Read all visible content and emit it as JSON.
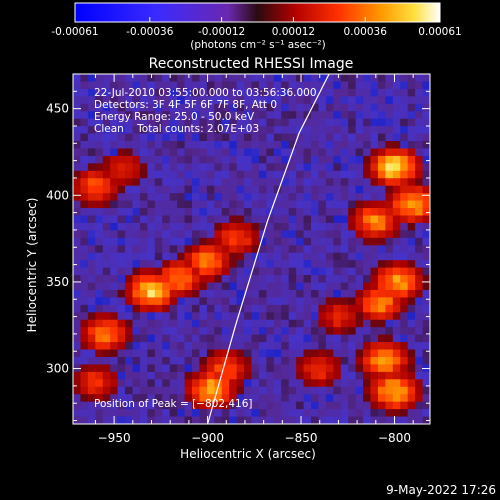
{
  "colorbar": {
    "tick_labels": [
      "-0.00061",
      "-0.00036",
      "-0.00012",
      "0.00012",
      "0.00036",
      "0.00061"
    ],
    "tick_values": [
      -0.00061,
      -0.00036,
      -0.00012,
      0.00012,
      0.00036,
      0.00061
    ],
    "range": [
      -0.00061,
      0.00061
    ],
    "units_label": "(photons cm⁻² s⁻¹ asec⁻²)"
  },
  "chart_data": {
    "type": "heatmap",
    "title": "Reconstructed RHESSI Image",
    "xlabel": "Heliocentric X (arcsec)",
    "ylabel": "Heliocentric Y (arcsec)",
    "xlim": [
      -972,
      -781
    ],
    "ylim": [
      268,
      470
    ],
    "x_ticks": [
      -950,
      -900,
      -850,
      -800
    ],
    "x_tick_labels": [
      "−950",
      "−900",
      "−850",
      "−800"
    ],
    "y_ticks": [
      300,
      350,
      400,
      450
    ],
    "y_tick_labels": [
      "300",
      "350",
      "400",
      "450"
    ],
    "info_lines": [
      "22-Jul-2010 03:55:00.000 to 03:56:36.000",
      "Detectors: 3F 4F 5F 6F 7F 8F, Att 0",
      "Energy Range: 25.0 - 50.0 keV",
      "Clean    Total counts: 2.07E+03"
    ],
    "peak_label": "Position of Peak = [−802,416]",
    "peak": [
      -802,
      416
    ],
    "limb_curve": [
      [
        -900,
        268
      ],
      [
        -885,
        325
      ],
      [
        -868,
        385
      ],
      [
        -851,
        436
      ],
      [
        -835,
        470
      ]
    ],
    "hot_regions": [
      {
        "x": -800,
        "y": 416,
        "level": 1.0
      },
      {
        "x": -790,
        "y": 395,
        "level": 0.85
      },
      {
        "x": -810,
        "y": 385,
        "level": 0.75
      },
      {
        "x": -798,
        "y": 350,
        "level": 0.8
      },
      {
        "x": -808,
        "y": 338,
        "level": 0.75
      },
      {
        "x": -805,
        "y": 305,
        "level": 0.8
      },
      {
        "x": -800,
        "y": 287,
        "level": 0.9
      },
      {
        "x": -930,
        "y": 345,
        "level": 0.95
      },
      {
        "x": -915,
        "y": 352,
        "level": 0.7
      },
      {
        "x": -900,
        "y": 362,
        "level": 0.7
      },
      {
        "x": -885,
        "y": 375,
        "level": 0.55
      },
      {
        "x": -955,
        "y": 320,
        "level": 0.7
      },
      {
        "x": -960,
        "y": 405,
        "level": 0.6
      },
      {
        "x": -945,
        "y": 415,
        "level": 0.45
      },
      {
        "x": -898,
        "y": 288,
        "level": 0.85
      },
      {
        "x": -890,
        "y": 300,
        "level": 0.6
      },
      {
        "x": -840,
        "y": 300,
        "level": 0.5
      },
      {
        "x": -830,
        "y": 330,
        "level": 0.45
      },
      {
        "x": -960,
        "y": 292,
        "level": 0.5
      }
    ]
  },
  "footer": {
    "timestamp": "9-May-2022 17:26"
  }
}
